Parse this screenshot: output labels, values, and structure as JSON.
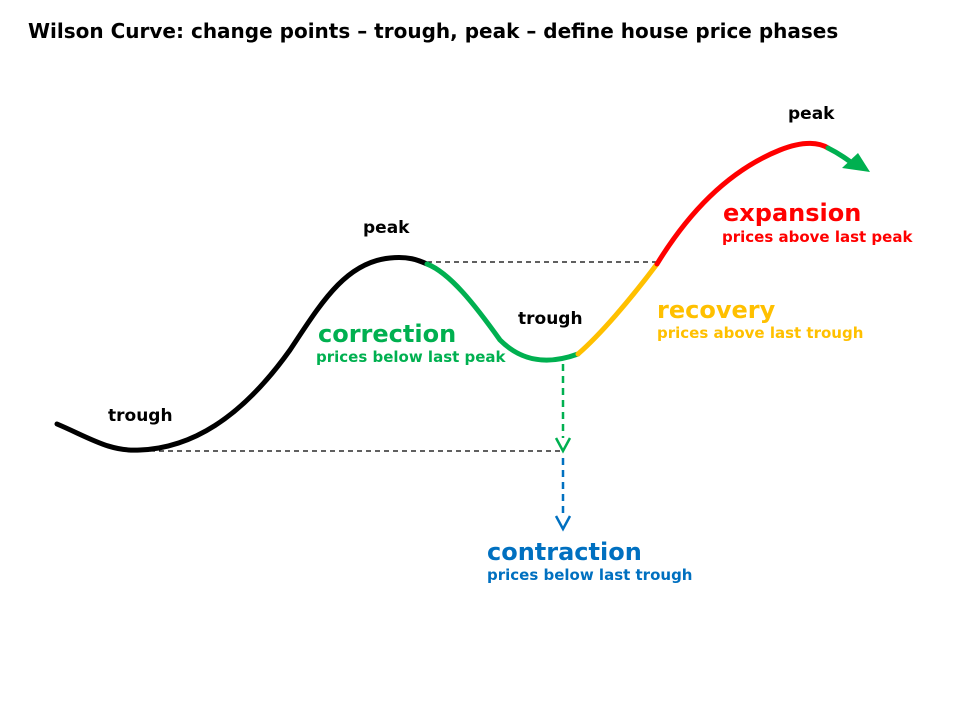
{
  "title": "Wilson Curve: change points – trough, peak – define house price phases",
  "colors": {
    "base": "#000000",
    "correction": "#00b050",
    "recovery": "#ffc000",
    "expansion": "#ff0000",
    "contraction": "#0070c0"
  },
  "points": {
    "trough_first": "trough",
    "peak_first": "peak",
    "trough_second": "trough",
    "peak_second": "peak"
  },
  "phases": {
    "correction": {
      "name": "correction",
      "description": "prices below last peak"
    },
    "recovery": {
      "name": "recovery",
      "description": "prices above last trough"
    },
    "expansion": {
      "name": "expansion",
      "description": "prices above last peak"
    },
    "contraction": {
      "name": "contraction",
      "description": "prices below last trough"
    }
  }
}
